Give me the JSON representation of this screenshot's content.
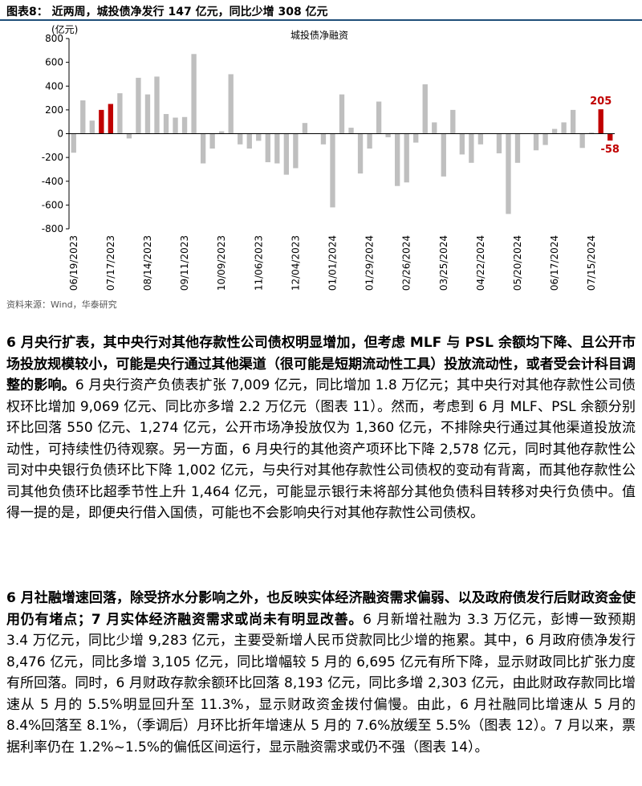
{
  "figure": {
    "title": "图表8：  近两周，城投债净发行 147 亿元，同比少增 308 亿元",
    "source": "资料来源：Wind，华泰研究"
  },
  "chart_data": {
    "type": "bar",
    "title": "城投债净融资",
    "unit_label": "(亿元)",
    "ylim": [
      -800,
      800
    ],
    "yticks": [
      -800,
      -600,
      -400,
      -200,
      0,
      200,
      400,
      600,
      800
    ],
    "xtick_labels": [
      "06/19/2023",
      "07/17/2023",
      "08/14/2023",
      "09/11/2023",
      "10/09/2023",
      "11/06/2023",
      "12/04/2023",
      "01/01/2024",
      "01/29/2024",
      "02/26/2024",
      "03/25/2024",
      "04/22/2024",
      "05/20/2024",
      "06/17/2024",
      "07/15/2024"
    ],
    "xtick_positions": [
      0,
      4,
      8,
      12,
      16,
      20,
      24,
      28,
      32,
      36,
      40,
      44,
      48,
      52,
      56
    ],
    "values": [
      -160,
      280,
      110,
      200,
      250,
      340,
      -40,
      470,
      330,
      480,
      165,
      135,
      140,
      670,
      -250,
      -125,
      20,
      500,
      -90,
      -125,
      -60,
      -240,
      -250,
      -345,
      -290,
      90,
      0,
      -90,
      -620,
      330,
      50,
      -335,
      -125,
      270,
      -30,
      -440,
      -410,
      -75,
      415,
      95,
      -360,
      200,
      -175,
      -245,
      -90,
      0,
      -165,
      -675,
      -245,
      0,
      -140,
      -95,
      40,
      95,
      200,
      -120,
      10,
      205,
      -58
    ],
    "highlight_indices": [
      3,
      4,
      57,
      58
    ],
    "data_labels": [
      {
        "index": 57,
        "text": "205"
      },
      {
        "index": 58,
        "text": "-58"
      }
    ],
    "colors": {
      "base": "#bfbfbf",
      "highlight": "#c00000"
    }
  },
  "paragraphs": [
    {
      "bold": "6 月央行扩表，其中央行对其他存款性公司债权明显增加，但考虑 MLF 与 PSL 余额均下降、且公开市场投放规模较小，可能是央行通过其他渠道（很可能是短期流动性工具）投放流动性，或者受会计科目调整的影响。",
      "text": "6 月央行资产负债表扩张 7,009 亿元，同比增加 1.8 万亿元；其中央行对其他存款性公司债权环比增加 9,069 亿元、同比亦多增 2.2 万亿元（图表 11）。然而，考虑到 6 月 MLF、PSL 余额分别环比回落 550 亿元、1,274 亿元，公开市场净投放仅为 1,360 亿元，不排除央行通过其他渠道投放流动性，可持续性仍待观察。另一方面，6 月央行的其他资产项环比下降 2,578 亿元，同时其他存款性公司对中央银行负债环比下降 1,002 亿元，与央行对其他存款性公司债权的变动有背离，而其他存款性公司其他负债环比超季节性上升 1,464 亿元，可能显示银行未将部分其他负债科目转移对央行负债中。值得一提的是，即便央行借入国债，可能也不会影响央行对其他存款性公司债权。"
    },
    {
      "bold": "6 月社融增速回落，除受挤水分影响之外，也反映实体经济融资需求偏弱、以及政府债发行后财政资金使用仍有堵点；7 月实体经济融资需求或尚未有明显改善。",
      "text": "6 月新增社融为 3.3 万亿元，彭博一致预期 3.4 万亿元，同比少增 9,283 亿元，主要受新增人民币贷款同比少增的拖累。其中，6 月政府债净发行 8,476 亿元，同比多增 3,105 亿元，同比增幅较 5 月的 6,695 亿元有所下降，显示财政同比扩张力度有所回落。同时，6 月财政存款余额环比回落 8,193 亿元，同比多增 2,303 亿元，由此财政存款同比增速从 5 月的 5.5%明显回升至 11.3%，显示财政资金拨付偏慢。由此，6 月社融同比增速从 5 月的 8.4%回落至 8.1%，（季调后）月环比折年增速从 5 月的 7.6%放缓至 5.5%（图表 12）。7 月以来，票据利率仍在 1.2%~1.5%的偏低区间运行，显示融资需求或仍不强（图表 14）。"
    }
  ]
}
